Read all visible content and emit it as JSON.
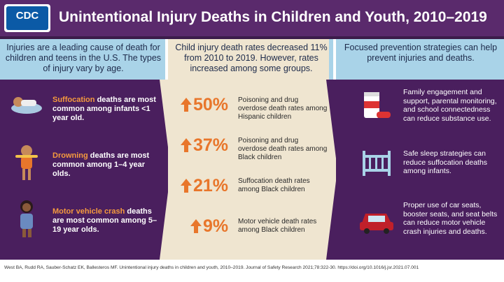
{
  "header": {
    "logo": "CDC",
    "title": "Unintentional Injury Deaths in Children and Youth, 2010–2019"
  },
  "left": {
    "heading": "Injuries are a leading cause of death for children and teens in the U.S. The types of injury vary by age.",
    "items": [
      {
        "highlight": "Suffocation",
        "text": "deaths are most common among infants <1 year old."
      },
      {
        "highlight": "Drowning",
        "text": "deaths are most common among 1–4 year olds."
      },
      {
        "highlight": "Motor vehicle crash",
        "text": "deaths are most common among 5–19 year olds."
      }
    ]
  },
  "middle": {
    "heading": "Child injury death rates decreased 11% from 2010 to 2019. However, rates increased among some groups.",
    "stats": [
      {
        "value": "50%",
        "text": "Poisoning and drug overdose death rates among Hispanic children"
      },
      {
        "value": "37%",
        "text": "Poisoning and drug overdose death rates among Black children"
      },
      {
        "value": "21%",
        "text": "Suffocation death rates among Black children"
      },
      {
        "value": "9%",
        "text": "Motor vehicle death rates among Black children"
      }
    ]
  },
  "right": {
    "heading": "Focused prevention strategies can help prevent injuries and deaths.",
    "items": [
      "Family engagement and support, parental monitoring, and school connectedness can reduce substance use.",
      "Safe sleep strategies can reduce suffocation deaths among infants.",
      "Proper use of car seats, booster seats, and seat belts can reduce motor vehicle crash injuries and deaths."
    ]
  },
  "footer": "West BA, Rudd RA, Sauber-Schatz EK, Ballesteros MF. Unintentional injury deaths in children and youth, 2010–2019. Journal of Safety Research 2021;78:322-30. https://doi.org/10.1016/j.jsr.2021.07.001"
}
